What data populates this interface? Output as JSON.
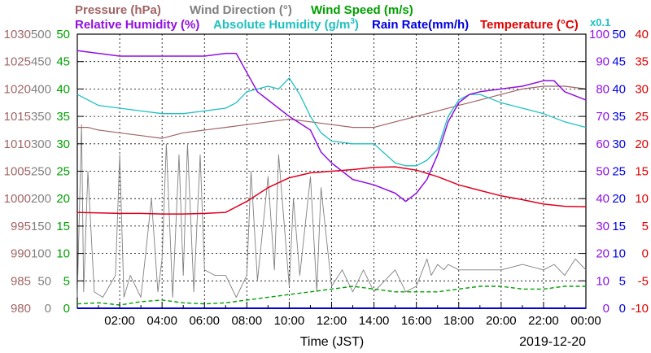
{
  "chart_data": {
    "type": "line",
    "xlabel": "Time (JST)",
    "date_label": "2019-12-20",
    "x_ticks": [
      "02:00",
      "04:00",
      "06:00",
      "08:00",
      "10:00",
      "12:00",
      "14:00",
      "16:00",
      "18:00",
      "20:00",
      "22:00",
      "00:00"
    ],
    "x_range_hours": [
      0,
      24
    ],
    "grid": true,
    "multiplier_label": "x0.1",
    "titles": {
      "pressure": "Pressure (hPa)",
      "wind_direction": "Wind Direction (°)",
      "wind_speed": "Wind Speed (m/s)",
      "humidity": "Relative Humidity (%)",
      "abs_humidity_prefix": "Absolute Humidity (g/m",
      "abs_humidity_sup": "3",
      "abs_humidity_suffix": ")",
      "rain": "Rain Rate(mm/h)",
      "temperature": "Temperature (°C)"
    },
    "axes": {
      "pressure": {
        "ticks": [
          "1030",
          "1025",
          "1020",
          "1015",
          "1010",
          "1005",
          "1000",
          "995",
          "990",
          "985",
          "980"
        ],
        "range": [
          980,
          1030
        ],
        "color": "#a06464"
      },
      "wind_direction": {
        "ticks": [
          "500",
          "450",
          "400",
          "350",
          "300",
          "250",
          "200",
          "150",
          "100",
          "50",
          "0"
        ],
        "range": [
          0,
          500
        ],
        "color": "#808080"
      },
      "wind_speed": {
        "ticks": [
          "50",
          "45",
          "40",
          "35",
          "30",
          "25",
          "20",
          "15",
          "10",
          "5",
          "0"
        ],
        "range": [
          0,
          50
        ],
        "color": "#00a000"
      },
      "humidity": {
        "ticks": [
          "100",
          "90",
          "80",
          "70",
          "60",
          "50",
          "40",
          "30",
          "20",
          "10",
          "0"
        ],
        "range": [
          0,
          100
        ],
        "color": "#9010e0"
      },
      "rain": {
        "ticks": [
          "50",
          "45",
          "40",
          "35",
          "30",
          "25",
          "20",
          "15",
          "10",
          "5",
          "0"
        ],
        "range": [
          0,
          50
        ],
        "color": "#0000e0"
      },
      "temperature": {
        "ticks": [
          "40",
          "35",
          "30",
          "25",
          "20",
          "15",
          "10",
          "5",
          "0",
          "-5",
          "-10"
        ],
        "range": [
          -10,
          40
        ],
        "color": "#e00000"
      }
    },
    "colors": {
      "pressure": "#a06464",
      "wind_direction": "#808080",
      "wind_speed": "#00a000",
      "humidity": "#9010e0",
      "abs_humidity": "#20c0c0",
      "rain": "#0000e0",
      "temperature": "#e00020"
    },
    "series": [
      {
        "key": "temperature",
        "unit": "°C",
        "x": [
          0,
          1,
          2,
          3,
          4,
          5,
          6,
          7,
          8,
          9,
          10,
          11,
          12,
          13,
          14,
          15,
          16,
          17,
          18,
          19,
          20,
          21,
          22,
          23,
          24
        ],
        "values": [
          7.5,
          7.4,
          7.3,
          7.3,
          7.2,
          7.2,
          7.3,
          7.5,
          9.5,
          12,
          13.8,
          14.7,
          15,
          15.3,
          15.7,
          15.8,
          15.2,
          14,
          12.5,
          11.5,
          10.5,
          9.8,
          9,
          8.6,
          8.5
        ]
      },
      {
        "key": "humidity",
        "unit": "%",
        "x": [
          0,
          1,
          2,
          3,
          4,
          5,
          6,
          7,
          7.5,
          8,
          8.5,
          9,
          10,
          11,
          11.5,
          12,
          13,
          14,
          15,
          15.5,
          16,
          16.5,
          17,
          17.5,
          18,
          18.5,
          19,
          20,
          21,
          22,
          22.5,
          23,
          24
        ],
        "values": [
          94,
          93,
          92,
          92,
          92,
          92,
          92,
          93,
          93,
          86,
          79,
          76,
          70,
          65,
          57,
          53,
          47,
          45,
          42,
          39,
          42,
          47,
          56,
          68,
          75,
          78,
          79,
          80,
          81,
          83,
          83,
          79,
          76
        ]
      },
      {
        "key": "abs_humidity",
        "unit": "x0.1 g/m3",
        "x": [
          0,
          1,
          2,
          3,
          4,
          5,
          6,
          7,
          7.5,
          8,
          8.5,
          9,
          9.5,
          10,
          10.5,
          11,
          11.5,
          12,
          13,
          14,
          15,
          15.5,
          16,
          16.5,
          17,
          17.5,
          18,
          18.5,
          19,
          20,
          21,
          22,
          23,
          24
        ],
        "values": [
          78,
          74,
          73,
          72,
          71,
          71,
          72,
          73,
          75,
          79,
          80,
          81,
          80,
          84,
          78,
          70,
          64,
          61,
          60,
          60,
          53,
          52,
          52,
          54,
          58,
          70,
          76,
          78,
          78,
          75,
          73,
          71,
          68,
          66
        ]
      },
      {
        "key": "pressure",
        "unit": "hPa",
        "x": [
          0,
          0.5,
          1,
          2,
          3,
          4,
          5,
          6,
          7,
          8,
          9,
          10,
          11,
          12,
          13,
          14,
          15,
          16,
          17,
          18,
          19,
          20,
          21,
          22,
          23,
          24
        ],
        "values": [
          1013,
          1013,
          1012.5,
          1012,
          1011.5,
          1011,
          1012,
          1012.5,
          1013,
          1013.5,
          1014,
          1014.5,
          1014,
          1013.5,
          1013,
          1013,
          1014,
          1015,
          1016,
          1017,
          1018,
          1019,
          1020,
          1020.5,
          1020.5,
          1020
        ]
      },
      {
        "key": "wind_direction",
        "unit": "°",
        "x": [
          0,
          0.2,
          0.3,
          0.5,
          0.8,
          1.2,
          1.8,
          2,
          2.2,
          2.5,
          3,
          3.2,
          3.5,
          3.8,
          4,
          4.2,
          4.5,
          4.8,
          5,
          5.2,
          5.5,
          5.8,
          6,
          6.5,
          7,
          7.5,
          8,
          8.2,
          8.5,
          9,
          9.3,
          9.5,
          10,
          10.2,
          10.5,
          11,
          11.3,
          11.5,
          12,
          12.5,
          13,
          13.5,
          14,
          14.5,
          15,
          15.5,
          16,
          16.5,
          16.7,
          17,
          17.3,
          17.5,
          18,
          19,
          20,
          21,
          22,
          22.5,
          23,
          23.5,
          24
        ],
        "values": [
          20,
          335,
          30,
          250,
          30,
          20,
          60,
          280,
          20,
          60,
          20,
          90,
          200,
          30,
          90,
          300,
          20,
          280,
          60,
          300,
          30,
          280,
          70,
          60,
          60,
          20,
          60,
          250,
          50,
          240,
          70,
          280,
          40,
          200,
          60,
          240,
          30,
          220,
          40,
          70,
          30,
          70,
          30,
          50,
          70,
          30,
          40,
          90,
          60,
          80,
          70,
          80,
          70,
          70,
          70,
          80,
          70,
          80,
          60,
          90,
          70
        ]
      },
      {
        "key": "wind_speed",
        "unit": "m/s",
        "x": [
          0,
          1,
          2,
          3,
          4,
          5,
          6,
          7,
          8,
          9,
          10,
          11,
          12,
          13,
          14,
          15,
          16,
          17,
          18,
          19,
          20,
          21,
          22,
          23,
          24
        ],
        "values": [
          0.8,
          1,
          0.6,
          1.2,
          1.5,
          1,
          0.8,
          1,
          1.5,
          2,
          2.5,
          3,
          3.5,
          4,
          3.5,
          3,
          3,
          3,
          3.5,
          4,
          4,
          3.5,
          3.5,
          4,
          4
        ]
      },
      {
        "key": "rain",
        "unit": "mm/h",
        "x": [
          0,
          24
        ],
        "values": [
          0,
          0
        ]
      }
    ]
  }
}
